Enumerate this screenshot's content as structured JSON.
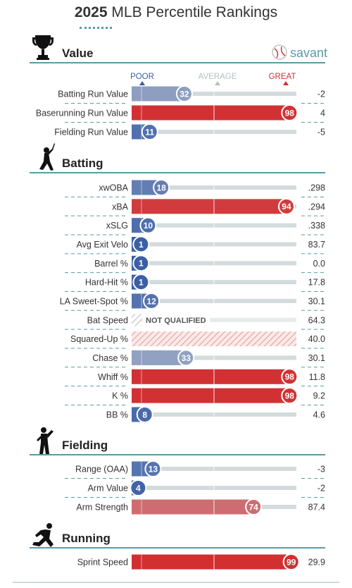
{
  "title": {
    "year": "2025",
    "rest": "MLB Percentile Rankings"
  },
  "brand": {
    "name": "savant"
  },
  "scale_labels": {
    "poor": "POOR",
    "average": "AVERAGE",
    "great": "GREAT"
  },
  "colors": {
    "great": "#d22d2f",
    "poor": "#3a5ea6",
    "rule": "#5b9aa7",
    "track": "#d3dbdc",
    "pale_red": "#d6857d",
    "pale_blue": "#9db1d0",
    "text": "#333333"
  },
  "not_qualified_label": "NOT QUALIFIED",
  "chart_data": {
    "type": "bar",
    "xlim": [
      0,
      100
    ],
    "sections": [
      {
        "name": "Value",
        "icon": "trophy-icon",
        "rows": [
          {
            "label": "Batting Run Value",
            "percentile": 32,
            "value": "-2"
          },
          {
            "label": "Baserunning Run Value",
            "percentile": 98,
            "value": "4"
          },
          {
            "label": "Fielding Run Value",
            "percentile": 11,
            "value": "-5"
          }
        ]
      },
      {
        "name": "Batting",
        "icon": "batter-icon",
        "rows": [
          {
            "label": "xwOBA",
            "percentile": 18,
            "value": ".298"
          },
          {
            "label": "xBA",
            "percentile": 94,
            "value": ".294"
          },
          {
            "label": "xSLG",
            "percentile": 10,
            "value": ".338"
          },
          {
            "label": "Avg Exit Velo",
            "percentile": 1,
            "value": "83.7"
          },
          {
            "label": "Barrel %",
            "percentile": 1,
            "value": "0.0"
          },
          {
            "label": "Hard-Hit %",
            "percentile": 1,
            "value": "17.8"
          },
          {
            "label": "LA Sweet-Spot %",
            "percentile": 12,
            "value": "30.1"
          },
          {
            "label": "Bat Speed",
            "percentile": null,
            "value": "64.3",
            "not_qualified": true
          },
          {
            "label": "Squared-Up %",
            "percentile": null,
            "value": "40.0",
            "hatched_full": true
          },
          {
            "label": "Chase %",
            "percentile": 33,
            "value": "30.1"
          },
          {
            "label": "Whiff %",
            "percentile": 98,
            "value": "11.8"
          },
          {
            "label": "K %",
            "percentile": 98,
            "value": "9.2"
          },
          {
            "label": "BB %",
            "percentile": 8,
            "value": "4.6"
          }
        ]
      },
      {
        "name": "Fielding",
        "icon": "fielder-icon",
        "rows": [
          {
            "label": "Range (OAA)",
            "percentile": 13,
            "value": "-3"
          },
          {
            "label": "Arm Value",
            "percentile": 4,
            "value": "-2"
          },
          {
            "label": "Arm Strength",
            "percentile": 74,
            "value": "87.4"
          }
        ]
      },
      {
        "name": "Running",
        "icon": "runner-icon",
        "rows": [
          {
            "label": "Sprint Speed",
            "percentile": 99,
            "value": "29.9"
          }
        ]
      }
    ]
  }
}
